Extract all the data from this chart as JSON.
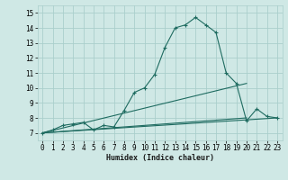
{
  "xlabel": "Humidex (Indice chaleur)",
  "background_color": "#cfe8e5",
  "grid_color": "#aacfcc",
  "line_color": "#1e6b60",
  "xlim": [
    -0.5,
    23.5
  ],
  "ylim": [
    6.5,
    15.5
  ],
  "xticks": [
    0,
    1,
    2,
    3,
    4,
    5,
    6,
    7,
    8,
    9,
    10,
    11,
    12,
    13,
    14,
    15,
    16,
    17,
    18,
    19,
    20,
    21,
    22,
    23
  ],
  "yticks": [
    7,
    8,
    9,
    10,
    11,
    12,
    13,
    14,
    15
  ],
  "main_x": [
    0,
    1,
    2,
    3,
    4,
    5,
    6,
    7,
    8,
    9,
    10,
    11,
    12,
    13,
    14,
    15,
    16,
    17,
    18,
    19,
    20,
    21,
    22,
    23
  ],
  "main_y": [
    7.0,
    7.2,
    7.5,
    7.6,
    7.7,
    7.2,
    7.5,
    7.4,
    8.5,
    9.7,
    10.0,
    10.9,
    12.7,
    14.0,
    14.2,
    14.7,
    14.2,
    13.7,
    11.0,
    10.3,
    7.8,
    8.6,
    8.1,
    8.0
  ],
  "line2_x": [
    0,
    23
  ],
  "line2_y": [
    7.0,
    8.0
  ],
  "line3_x": [
    0,
    20
  ],
  "line3_y": [
    7.0,
    10.3
  ],
  "line4_x": [
    0,
    20
  ],
  "line4_y": [
    7.0,
    8.0
  ]
}
